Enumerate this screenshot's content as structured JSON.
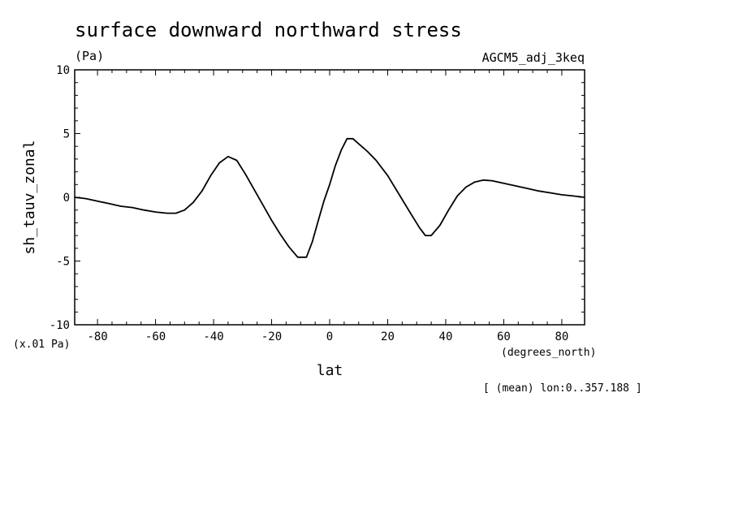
{
  "chart_data": {
    "type": "line",
    "title": "surface downward northward stress",
    "units_label": "(Pa)",
    "dataset_label": "AGCM5_adj_3keq",
    "xlabel": "lat",
    "x_units_label": "(degrees_north)",
    "ylabel": "sh_tauv_zonal",
    "y_scale_label": "(x.01 Pa)",
    "footnote": "[ (mean) lon:0..357.188 ]",
    "xlim": [
      -87.864,
      87.864
    ],
    "ylim": [
      -10,
      10
    ],
    "x_ticks": [
      -80,
      -60,
      -40,
      -20,
      0,
      20,
      40,
      60,
      80
    ],
    "x_tick_labels": [
      "-80",
      "-60",
      "-40",
      "-20",
      "0",
      "20",
      "40",
      "60",
      "80"
    ],
    "y_ticks": [
      -10,
      -5,
      0,
      5,
      10
    ],
    "y_tick_labels": [
      "-10",
      "-5",
      "0",
      "5",
      "10"
    ],
    "grid": false,
    "series": [
      {
        "x": [
          -87.9,
          -84,
          -80,
          -76,
          -72,
          -68,
          -64,
          -60,
          -56,
          -53,
          -50,
          -47,
          -44,
          -41,
          -38,
          -35,
          -32,
          -29,
          -26,
          -23,
          -20,
          -17,
          -14,
          -11,
          -8,
          -6,
          -4,
          -2,
          0,
          2,
          4,
          6,
          8,
          10,
          13,
          16,
          20,
          24,
          28,
          31,
          33,
          35,
          38,
          41,
          44,
          47,
          50,
          53,
          56,
          60,
          64,
          68,
          72,
          76,
          80,
          84,
          87.9
        ],
        "y": [
          0.0,
          -0.1,
          -0.3,
          -0.5,
          -0.7,
          -0.8,
          -1.0,
          -1.15,
          -1.25,
          -1.25,
          -1.0,
          -0.4,
          0.5,
          1.7,
          2.7,
          3.2,
          2.9,
          1.8,
          0.6,
          -0.6,
          -1.8,
          -2.9,
          -3.9,
          -4.7,
          -4.7,
          -3.5,
          -1.9,
          -0.3,
          1.0,
          2.5,
          3.7,
          4.6,
          4.6,
          4.2,
          3.6,
          2.9,
          1.7,
          0.2,
          -1.3,
          -2.4,
          -3.0,
          -3.0,
          -2.2,
          -1.0,
          0.1,
          0.8,
          1.2,
          1.35,
          1.3,
          1.1,
          0.9,
          0.7,
          0.5,
          0.35,
          0.2,
          0.1,
          0.0
        ]
      }
    ]
  }
}
